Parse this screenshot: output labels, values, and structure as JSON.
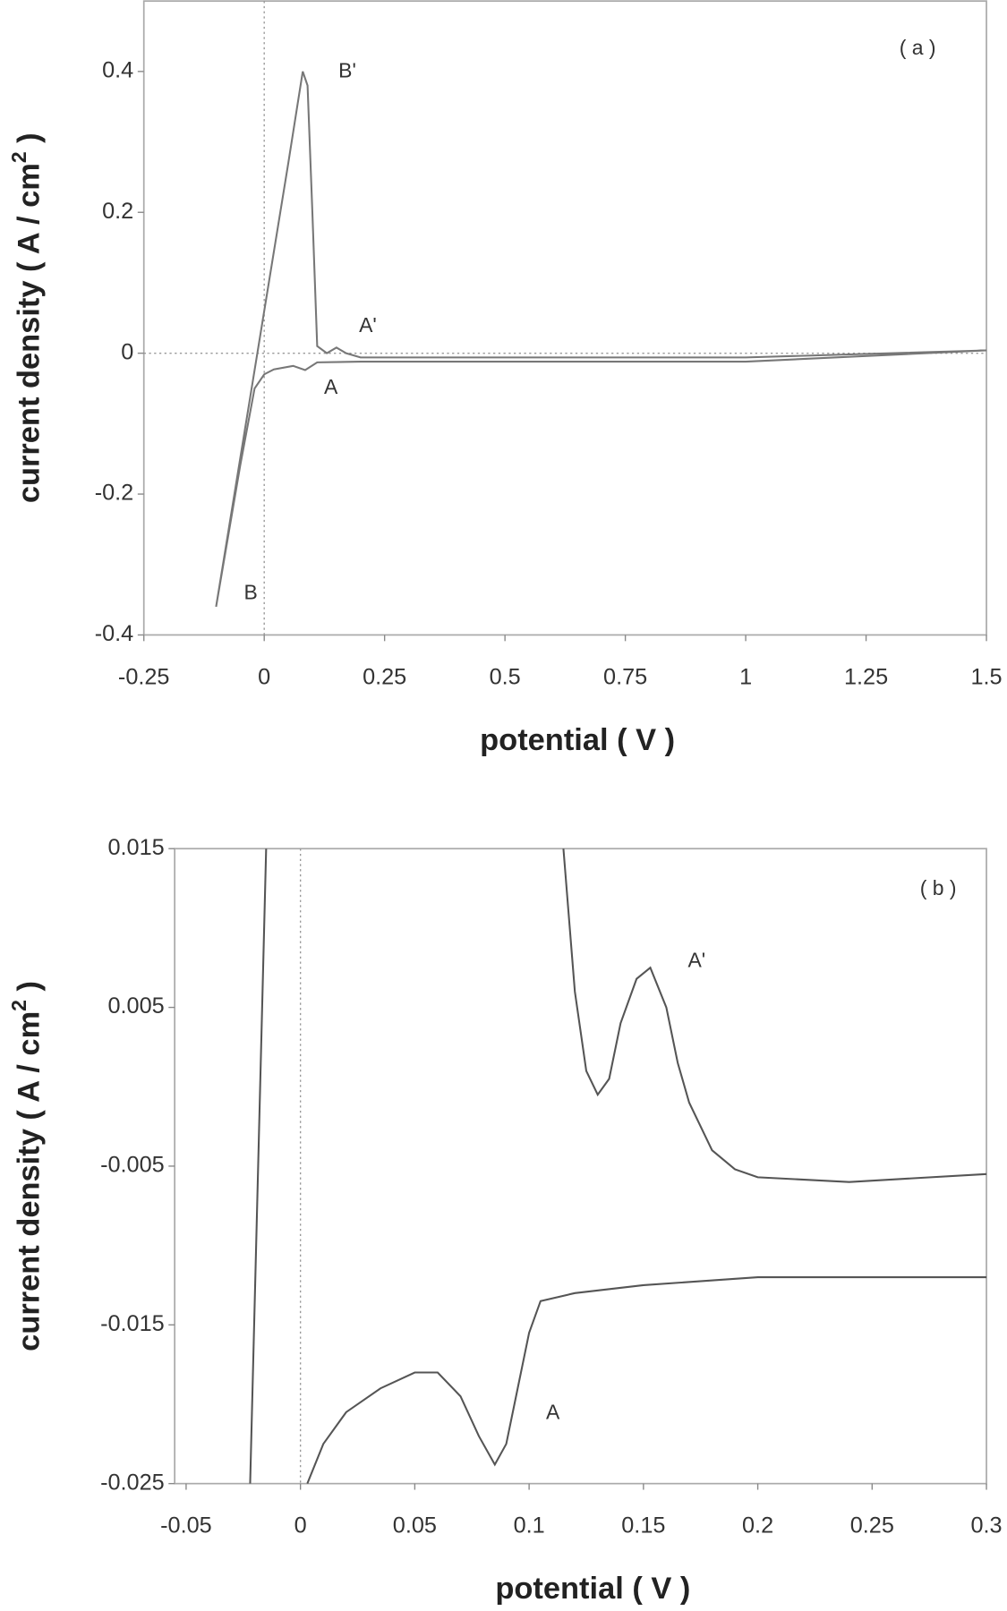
{
  "chart_data": [
    {
      "type": "line",
      "xlabel": "potential ( V )",
      "ylabel": "current density ( A / cm",
      "ylabel_sup": "2",
      "ylabel_end": " )",
      "xlim": [
        -0.25,
        1.5
      ],
      "xticks": [
        -0.25,
        0,
        0.25,
        0.5,
        0.75,
        1,
        1.25,
        1.5
      ],
      "ylim": [
        -0.4,
        0.5
      ],
      "yticks": [
        -0.4,
        -0.2,
        0,
        0.2,
        0.4
      ],
      "annotations": [
        "( a )",
        "B'",
        "A'",
        "A",
        "B"
      ],
      "series": [
        {
          "color": "#777777",
          "x": [
            -0.1,
            -0.05,
            0,
            0.05,
            0.08,
            0.09,
            0.1,
            0.11,
            0.13,
            0.15,
            0.17,
            0.2,
            0.5,
            1.0,
            1.5,
            1.0,
            0.5,
            0.2,
            0.11,
            0.085,
            0.06,
            0.02,
            0,
            -0.02,
            -0.05,
            -0.1
          ],
          "values": [
            -0.36,
            -0.15,
            0.06,
            0.27,
            0.4,
            0.38,
            0.2,
            0.01,
            0.0,
            0.008,
            0.0,
            -0.006,
            -0.006,
            -0.006,
            0.004,
            -0.012,
            -0.012,
            -0.012,
            -0.013,
            -0.024,
            -0.018,
            -0.023,
            -0.03,
            -0.05,
            -0.16,
            -0.36
          ]
        }
      ]
    },
    {
      "type": "line",
      "xlabel": "potential ( V )",
      "ylabel": "current density ( A / cm",
      "ylabel_sup": "2",
      "ylabel_end": " )",
      "xlim": [
        -0.055,
        0.3
      ],
      "xticks": [
        -0.05,
        0,
        0.05,
        0.1,
        0.15,
        0.2,
        0.25,
        0.3
      ],
      "ylim": [
        -0.025,
        0.015
      ],
      "yticks": [
        -0.025,
        -0.015,
        -0.005,
        0.005,
        0.015
      ],
      "annotations": [
        "( b )",
        "A'",
        "A"
      ],
      "series": [
        {
          "color": "#555555",
          "x": [
            -0.022,
            -0.015,
            null,
            0.115,
            0.12,
            0.125,
            0.13,
            0.135,
            0.14,
            0.147,
            0.153,
            0.16,
            0.165,
            0.17,
            0.18,
            0.19,
            0.2,
            0.24,
            0.3,
            null,
            0.003,
            0.01,
            0.02,
            0.035,
            0.05,
            0.06,
            0.07,
            0.078,
            0.085,
            0.09,
            0.095,
            0.1,
            0.105,
            0.12,
            0.15,
            0.2,
            0.3
          ],
          "values": [
            -0.025,
            0.015,
            null,
            0.015,
            0.006,
            0.001,
            -0.0005,
            0.0005,
            0.004,
            0.0068,
            0.0075,
            0.005,
            0.0015,
            -0.001,
            -0.004,
            -0.0052,
            -0.0057,
            -0.006,
            -0.0055,
            null,
            -0.025,
            -0.0225,
            -0.0205,
            -0.019,
            -0.018,
            -0.018,
            -0.0195,
            -0.022,
            -0.0238,
            -0.0225,
            -0.019,
            -0.0155,
            -0.0135,
            -0.013,
            -0.0125,
            -0.012,
            -0.012
          ]
        }
      ]
    }
  ]
}
